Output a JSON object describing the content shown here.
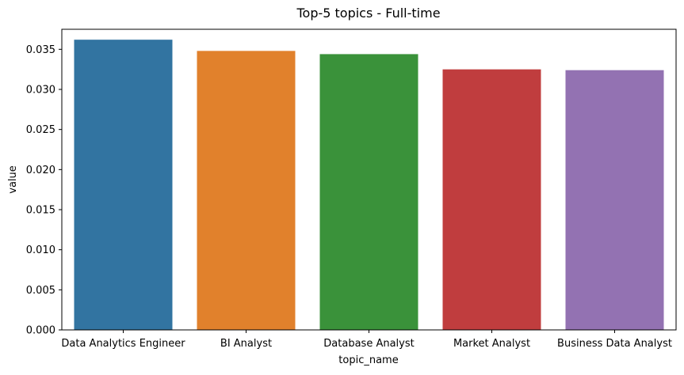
{
  "chart_data": {
    "type": "bar",
    "title": "Top-5 topics - Full-time",
    "xlabel": "topic_name",
    "ylabel": "value",
    "categories": [
      "Data Analytics Engineer",
      "BI Analyst",
      "Database Analyst",
      "Market Analyst",
      "Business Data Analyst"
    ],
    "values": [
      0.0362,
      0.0348,
      0.0344,
      0.0325,
      0.0324
    ],
    "colors": [
      "#3274a1",
      "#e1812c",
      "#3a923a",
      "#c03d3e",
      "#9372b2"
    ],
    "ylim": [
      0,
      0.0375
    ],
    "yticks": [
      0.0,
      0.005,
      0.01,
      0.015,
      0.02,
      0.025,
      0.03,
      0.035
    ],
    "ytick_labels": [
      "0.000",
      "0.005",
      "0.010",
      "0.015",
      "0.020",
      "0.025",
      "0.030",
      "0.035"
    ],
    "grid": false,
    "legend": "none"
  }
}
